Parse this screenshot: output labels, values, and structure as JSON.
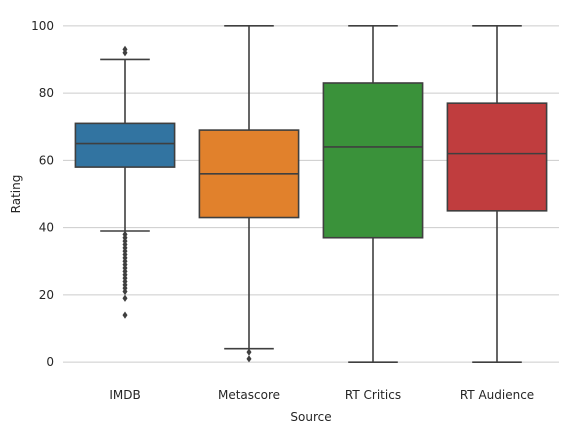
{
  "chart_data": {
    "type": "box",
    "title": "",
    "xlabel": "Source",
    "ylabel": "Rating",
    "ylim": [
      -5,
      105
    ],
    "yticks": [
      0,
      20,
      40,
      60,
      80,
      100
    ],
    "grid": true,
    "categories": [
      "IMDB",
      "Metascore",
      "RT Critics",
      "RT Audience"
    ],
    "colors": [
      "#3274a1",
      "#e1812c",
      "#3a923a",
      "#c03d3e"
    ],
    "boxes": [
      {
        "category": "IMDB",
        "q1": 58,
        "median": 65,
        "q3": 71,
        "whisker_low": 39,
        "whisker_high": 90,
        "outliers": [
          93,
          92,
          38,
          37,
          36,
          35,
          34,
          33,
          32,
          31,
          30,
          29,
          28,
          27,
          26,
          25,
          24,
          23,
          22,
          21,
          19,
          14
        ]
      },
      {
        "category": "Metascore",
        "q1": 43,
        "median": 56,
        "q3": 69,
        "whisker_low": 4,
        "whisker_high": 100,
        "outliers": [
          3,
          1
        ]
      },
      {
        "category": "RT Critics",
        "q1": 37,
        "median": 64,
        "q3": 83,
        "whisker_low": 0,
        "whisker_high": 100,
        "outliers": []
      },
      {
        "category": "RT Audience",
        "q1": 45,
        "median": 62,
        "q3": 77,
        "whisker_low": 0,
        "whisker_high": 100,
        "outliers": []
      }
    ]
  }
}
